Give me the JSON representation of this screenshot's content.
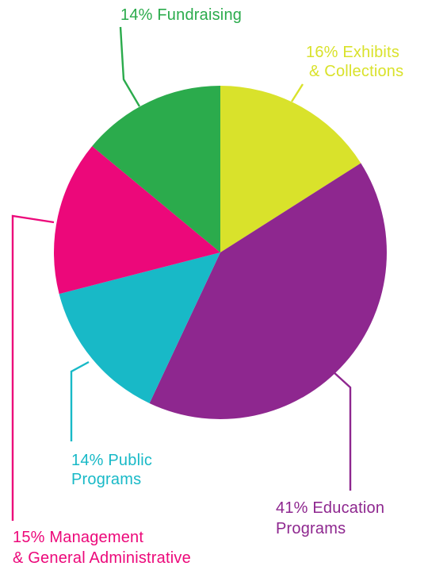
{
  "chart_data": {
    "type": "pie",
    "start_angle_deg": 0,
    "direction": "clockwise",
    "slices": [
      {
        "name": "Exhibits & Collections",
        "value": 16,
        "color": "#d9e22b",
        "label_lines": [
          "16% Exhibits",
          "& Collections"
        ]
      },
      {
        "name": "Education Programs",
        "value": 41,
        "color": "#8e278f",
        "label_lines": [
          "41% Education",
          "Programs"
        ]
      },
      {
        "name": "Public Programs",
        "value": 14,
        "color": "#18b9c7",
        "label_lines": [
          "14% Public",
          "Programs"
        ]
      },
      {
        "name": "Management & General Administrative",
        "value": 15,
        "color": "#ec087a",
        "label_lines": [
          "15% Management",
          "& General Administrative"
        ]
      },
      {
        "name": "Fundraising",
        "value": 14,
        "color": "#2bab4c",
        "label_lines": [
          "14% Fundraising"
        ]
      }
    ]
  }
}
